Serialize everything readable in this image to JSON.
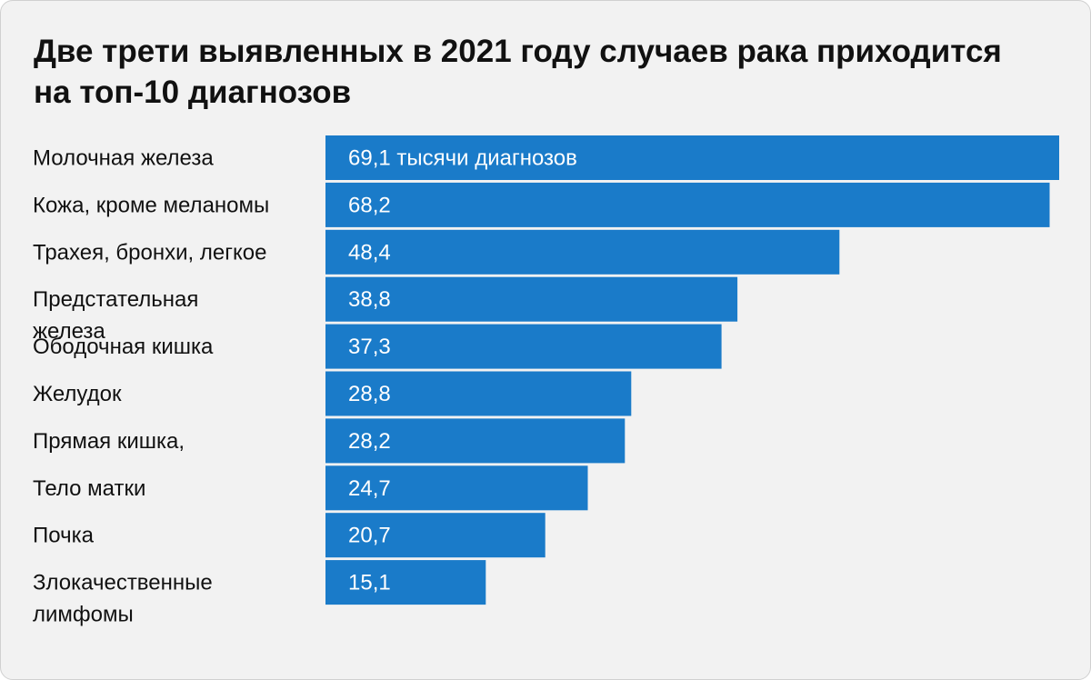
{
  "chart_data": {
    "type": "bar",
    "orientation": "horizontal",
    "title": "Две трети выявленных в 2021 году случаев рака приходится на топ-10 диагнозов",
    "categories": [
      "Молочная железа",
      "Кожа, кроме меланомы",
      "Трахея, бронхи, легкое",
      "Предстательная железа",
      "Ободочная кишка",
      "Желудок",
      "Прямая кишка,",
      "Тело матки",
      "Почка",
      "Злокачественные лимфомы"
    ],
    "values": [
      69.1,
      68.2,
      48.4,
      38.8,
      37.3,
      28.8,
      28.2,
      24.7,
      20.7,
      15.1
    ],
    "value_labels": [
      "69,1 тысячи диагнозов",
      "68,2",
      "48,4",
      "38,8",
      "37,3",
      "28,8",
      "28,2",
      "24,7",
      "20,7",
      "15,1"
    ],
    "xlim": [
      0,
      69.1
    ],
    "grid": false,
    "legend": "none",
    "bar_color": "#1a7bc9",
    "background_color": "#f2f2f2"
  }
}
